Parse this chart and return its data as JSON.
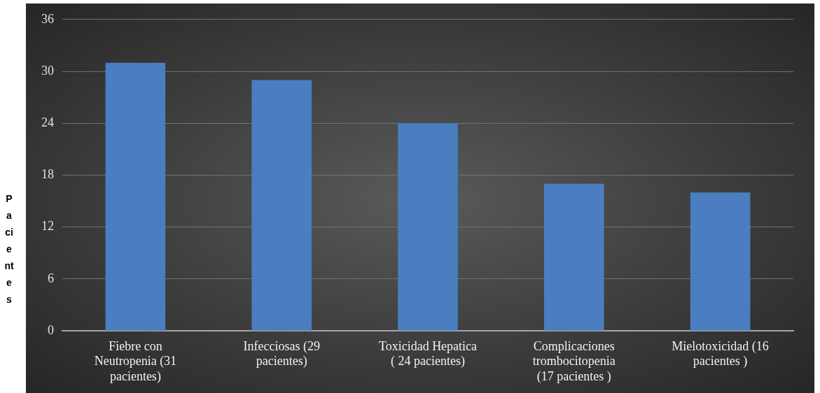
{
  "chart_data": {
    "type": "bar",
    "ylabel": "Pacientes",
    "categories": [
      "Fiebre con Neutropenia (31 pacientes)",
      "Infecciosas (29 pacientes)",
      "Toxicidad Hepatica ( 24 pacientes)",
      "Complicaciones trombocitopenia (17 pacientes )",
      "Mielotoxicidad (16 pacientes )"
    ],
    "values": [
      31,
      29,
      24,
      17,
      16
    ],
    "color": "#4a7ec0",
    "ylim": [
      0,
      36
    ],
    "yticks": [
      0,
      6,
      12,
      18,
      24,
      30,
      36
    ],
    "grid": "y",
    "legend": false
  }
}
